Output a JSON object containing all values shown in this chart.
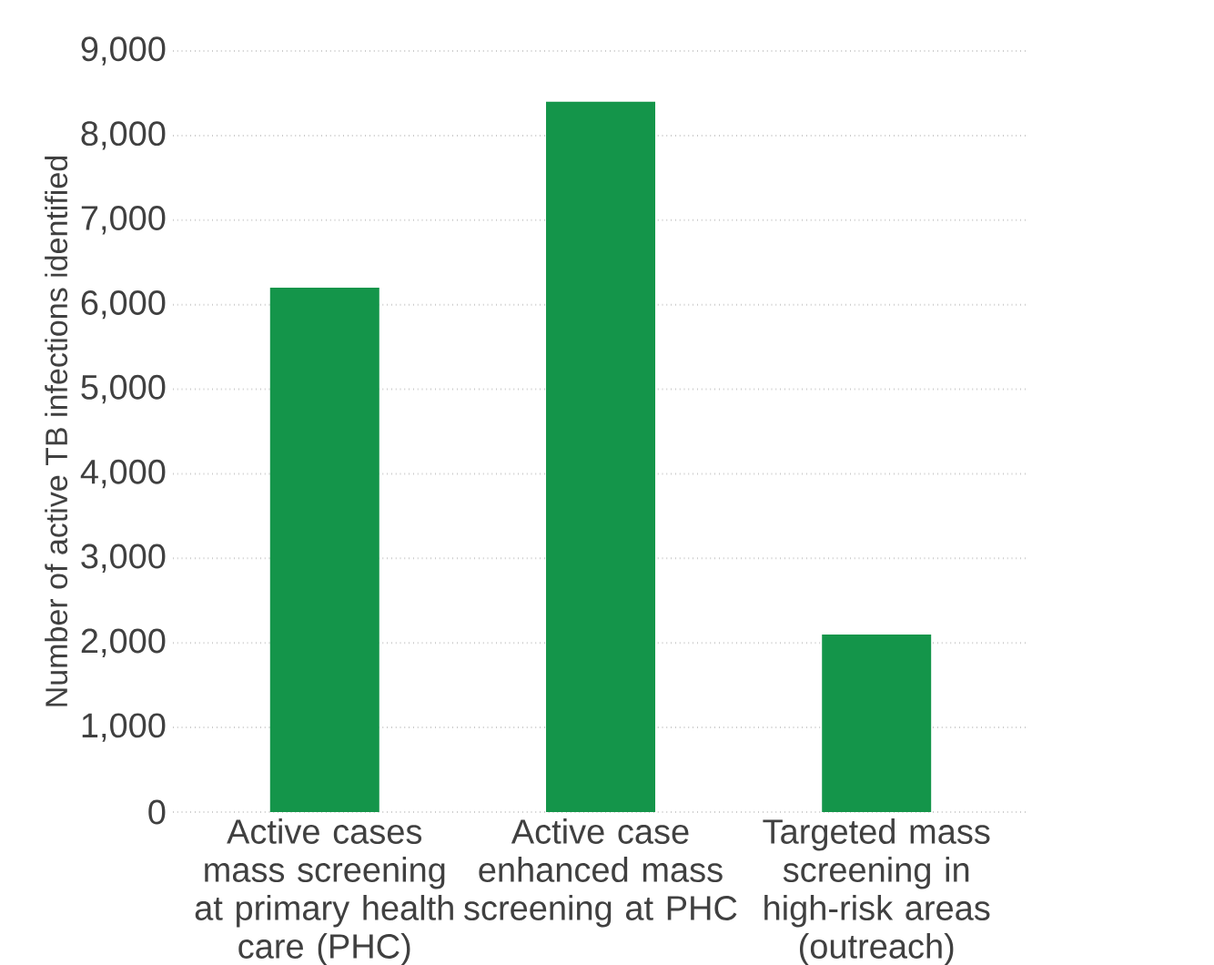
{
  "chart_data": {
    "type": "bar",
    "ylabel": "Number of active TB infections identified",
    "categories": [
      "Active cases mass screening at primary health care (PHC)",
      "Active case enhanced mass screening at PHC",
      "Targeted mass screening in high-risk areas (outreach)"
    ],
    "values": [
      6200,
      8400,
      2100
    ],
    "color": "#14954a",
    "ylim": [
      0,
      9000
    ],
    "yticks": [
      {
        "value": 0,
        "label": "0"
      },
      {
        "value": 1000,
        "label": "1,000"
      },
      {
        "value": 2000,
        "label": "2,000"
      },
      {
        "value": 3000,
        "label": "3,000"
      },
      {
        "value": 4000,
        "label": "4,000"
      },
      {
        "value": 5000,
        "label": "5,000"
      },
      {
        "value": 6000,
        "label": "6,000"
      },
      {
        "value": 7000,
        "label": "7,000"
      },
      {
        "value": 8000,
        "label": "8,000"
      },
      {
        "value": 9000,
        "label": "9,000"
      }
    ],
    "grid": "y"
  }
}
